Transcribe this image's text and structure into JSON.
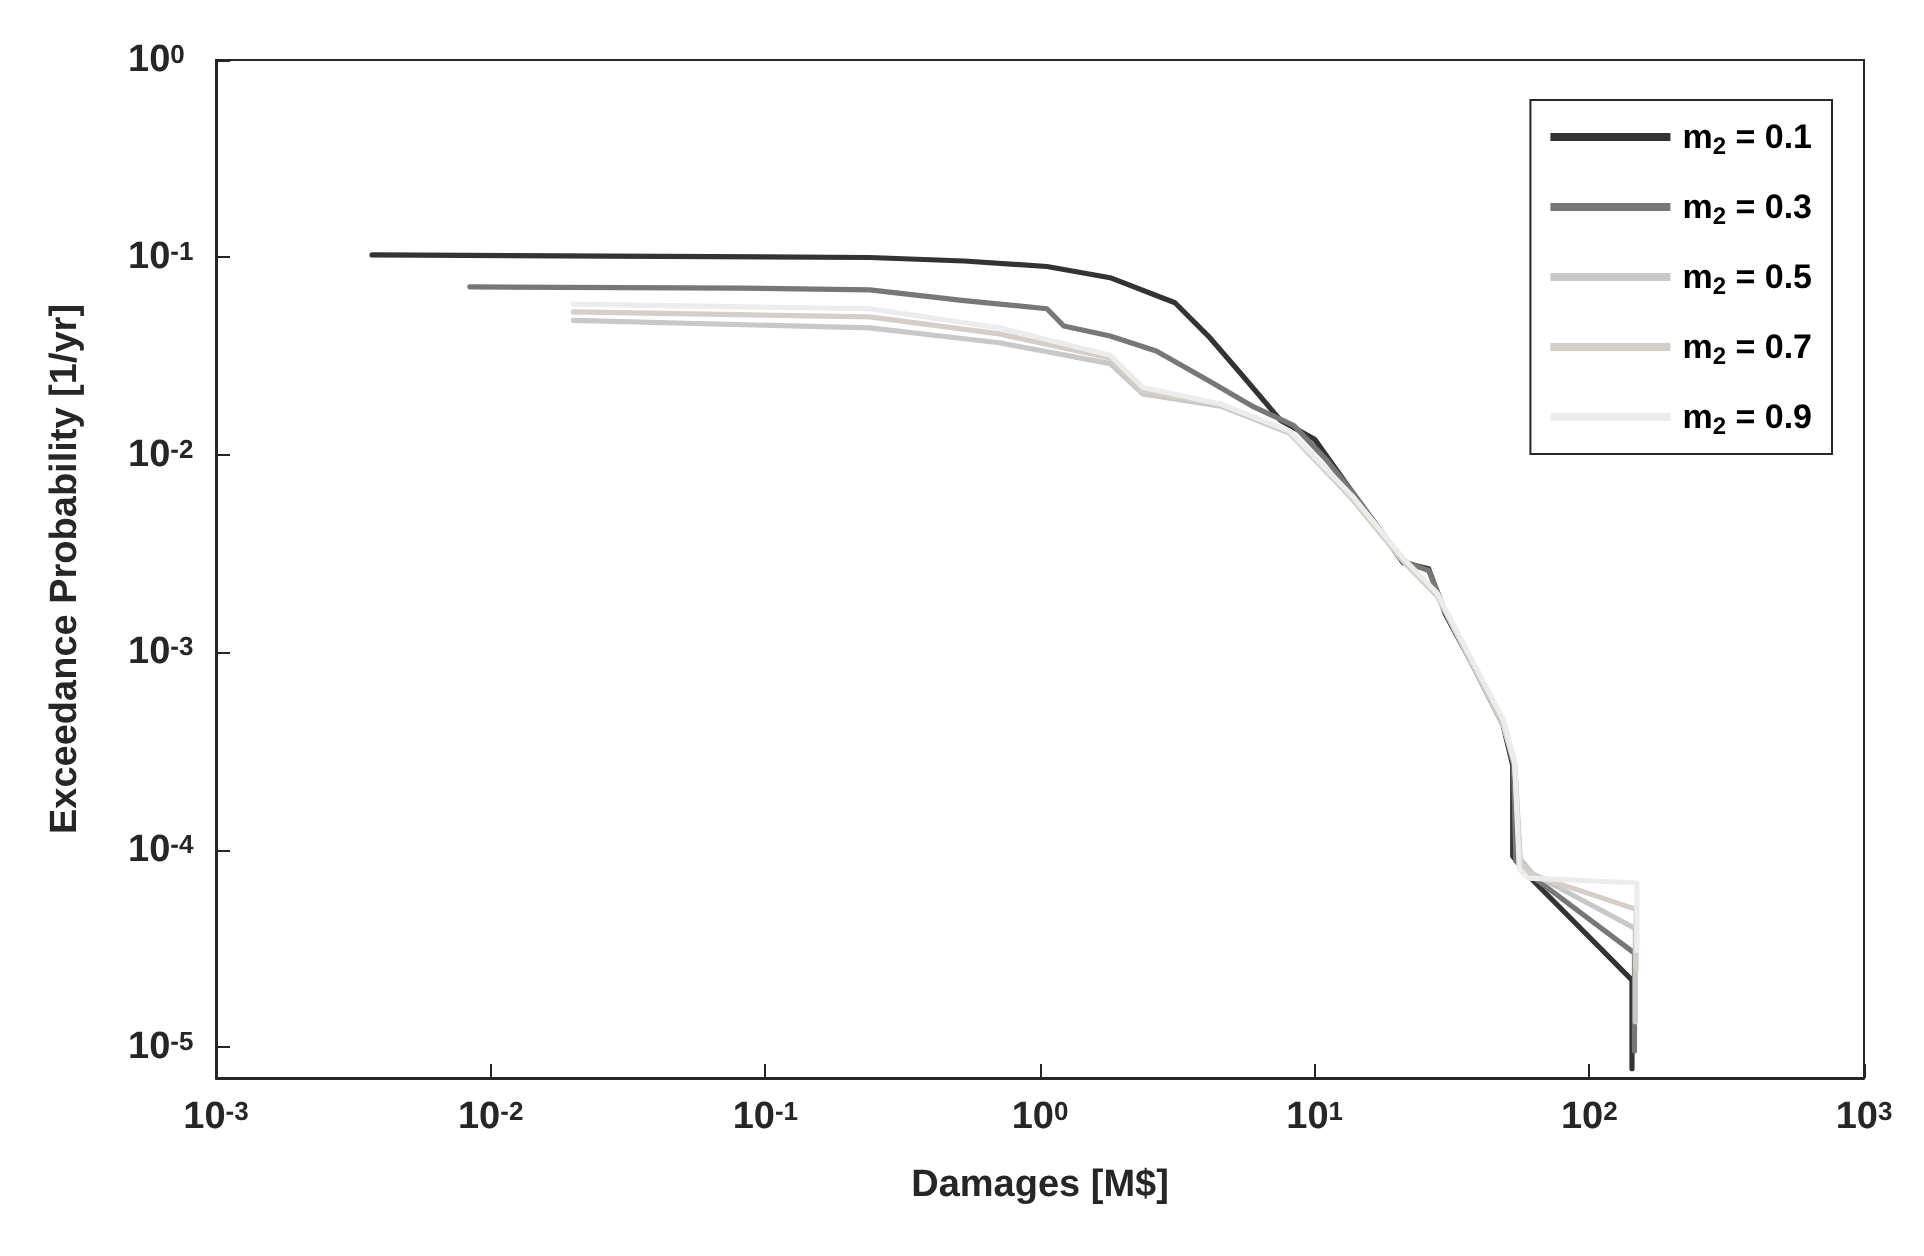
{
  "chart_data": {
    "type": "line",
    "xlabel": "Damages [M$]",
    "ylabel": "Exceedance Probability [1/yr]",
    "log": "xy",
    "xlim": [
      0.001,
      1000
    ],
    "ylim": [
      7e-06,
      1
    ],
    "xticks": [
      {
        "value": 0.001,
        "label": "10$^{-3}$"
      },
      {
        "value": 0.01,
        "label": "10$^{-2}$"
      },
      {
        "value": 0.1,
        "label": "10$^{-1}$"
      },
      {
        "value": 1,
        "label": "10$^{0}$"
      },
      {
        "value": 10,
        "label": "10$^{1}$"
      },
      {
        "value": 100,
        "label": "10$^{2}$"
      },
      {
        "value": 1000,
        "label": "10$^{3}$"
      }
    ],
    "yticks": [
      {
        "value": 1e-05,
        "label": "10$^{-5}$"
      },
      {
        "value": 0.0001,
        "label": "10$^{-4}$"
      },
      {
        "value": 0.001,
        "label": "10$^{-3}$"
      },
      {
        "value": 0.01,
        "label": "10$^{-2}$"
      },
      {
        "value": 0.1,
        "label": "10$^{-1}$"
      },
      {
        "value": 1,
        "label": "10$^{0}$"
      }
    ],
    "grid": false,
    "legend": "top right",
    "marker": "none",
    "line_style": "solid",
    "series": [
      {
        "name": "m$_{2}$ = 0.1",
        "color": "#333333",
        "x": [
          0.0037,
          0.24,
          0.53,
          1.06,
          1.8,
          3.1,
          4.1,
          5.4,
          7.5,
          10,
          13.7,
          21,
          26,
          30,
          36.9,
          48.5,
          52.6,
          52.6,
          60,
          143,
          143
        ],
        "values": [
          0.103,
          0.1,
          0.096,
          0.09,
          0.079,
          0.059,
          0.04,
          0.0257,
          0.015,
          0.012,
          0.0065,
          0.00285,
          0.00265,
          0.00155,
          0.00091,
          0.00043,
          0.000268,
          9.3e-05,
          7.4e-05,
          2.19e-05,
          7.8e-06
        ]
      },
      {
        "name": "m$_{2}$ = 0.3",
        "color": "#777777",
        "x": [
          0.0084,
          0.08,
          0.24,
          0.53,
          1.06,
          1.22,
          1.8,
          2.65,
          4.1,
          6,
          8.4,
          11,
          13.7,
          21,
          26,
          30,
          36.9,
          48.5,
          53,
          54,
          60,
          146,
          146
        ],
        "values": [
          0.071,
          0.07,
          0.0685,
          0.0605,
          0.055,
          0.045,
          0.04,
          0.0336,
          0.0238,
          0.0175,
          0.0141,
          0.0095,
          0.0065,
          0.0029,
          0.0026,
          0.0016,
          0.00092,
          0.00044,
          0.00027,
          8.8e-05,
          7.6e-05,
          3e-05,
          9.6e-06
        ]
      },
      {
        "name": "m$_{2}$ = 0.5",
        "color": "#c8c8c8",
        "x": [
          0.02,
          0.24,
          0.71,
          1.8,
          2.37,
          4.6,
          8.1,
          13.7,
          21,
          27.9,
          36.9,
          48.5,
          53.5,
          56,
          62,
          147,
          147
        ],
        "values": [
          0.048,
          0.044,
          0.037,
          0.029,
          0.0204,
          0.0176,
          0.0129,
          0.006,
          0.0029,
          0.00194,
          0.00091,
          0.00043,
          0.00027,
          9e-05,
          7.6e-05,
          4e-05,
          1.35e-05
        ]
      },
      {
        "name": "m$_{2}$ = 0.7",
        "color": "#d3cfc8",
        "x": [
          0.02,
          0.24,
          0.71,
          1.8,
          2.37,
          4.6,
          8.1,
          13.7,
          21,
          27.9,
          36.9,
          48.5,
          53.5,
          56,
          62,
          148,
          148
        ],
        "values": [
          0.053,
          0.05,
          0.041,
          0.031,
          0.021,
          0.018,
          0.013,
          0.006,
          0.0029,
          0.00195,
          0.00092,
          0.00044,
          0.00027,
          8.5e-05,
          7.5e-05,
          5e-05,
          2.5e-05
        ]
      },
      {
        "name": "m$_{2}$ = 0.9",
        "color": "#ececec",
        "x": [
          0.02,
          0.24,
          0.71,
          1.8,
          2.37,
          4.6,
          8.1,
          13.7,
          21,
          27.9,
          36.9,
          48.5,
          53.5,
          55.6,
          60,
          149,
          149
        ],
        "values": [
          0.058,
          0.055,
          0.044,
          0.032,
          0.022,
          0.018,
          0.0132,
          0.0062,
          0.003,
          0.002,
          0.00095,
          0.00046,
          0.00028,
          8e-05,
          7.2e-05,
          6.8e-05,
          3.1e-05
        ]
      }
    ]
  }
}
